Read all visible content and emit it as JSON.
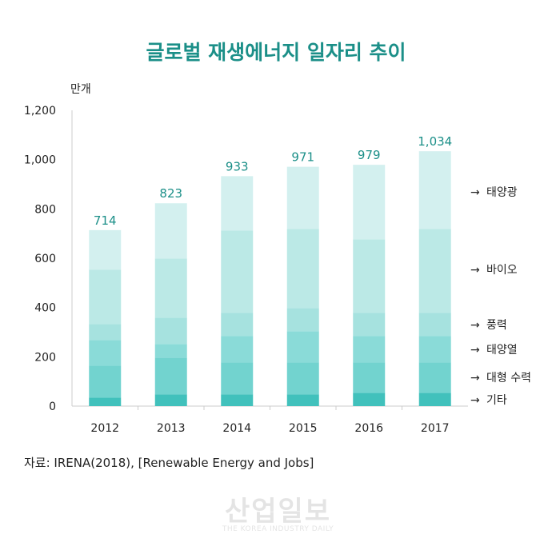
{
  "title": "글로벌 재생에너지 일자리 추이",
  "unit": "만개",
  "source": "자료: IRENA(2018), [Renewable Energy and Jobs]",
  "watermark": {
    "main": "산업일보",
    "sub": "THE KOREA INDUSTRY DAILY"
  },
  "chart_data": {
    "type": "bar",
    "stacked": true,
    "title": "글로벌 재생에너지 일자리 추이",
    "ylabel": "만개",
    "ylim": [
      0,
      1200
    ],
    "yticks": [
      0,
      200,
      400,
      600,
      800,
      1000,
      1200
    ],
    "ytick_labels": [
      "0",
      "200",
      "400",
      "600",
      "800",
      "1,000",
      "1,200"
    ],
    "categories": [
      "2012",
      "2013",
      "2014",
      "2015",
      "2016",
      "2017"
    ],
    "totals": [
      "714",
      "823",
      "933",
      "971",
      "979",
      "1,034"
    ],
    "total_values": [
      714,
      823,
      933,
      971,
      979,
      1034
    ],
    "legend_placement": "right",
    "series": [
      {
        "name": "기타",
        "color": "#41c1bc",
        "values": [
          35,
          48,
          48,
          48,
          54,
          54
        ]
      },
      {
        "name": "대형 수력",
        "color": "#72d3cf",
        "values": [
          129,
          149,
          129,
          129,
          123,
          123
        ]
      },
      {
        "name": "태양열",
        "color": "#8adbd8",
        "values": [
          104,
          55,
          107,
          127,
          107,
          107
        ]
      },
      {
        "name": "풍력",
        "color": "#a6e2df",
        "values": [
          65,
          107,
          94,
          94,
          94,
          94
        ]
      },
      {
        "name": "바이오",
        "color": "#bbe9e6",
        "values": [
          220,
          240,
          334,
          321,
          299,
          341
        ]
      },
      {
        "name": "태양광",
        "color": "#d3f0ef",
        "values": [
          161,
          224,
          221,
          252,
          302,
          315
        ]
      }
    ]
  }
}
